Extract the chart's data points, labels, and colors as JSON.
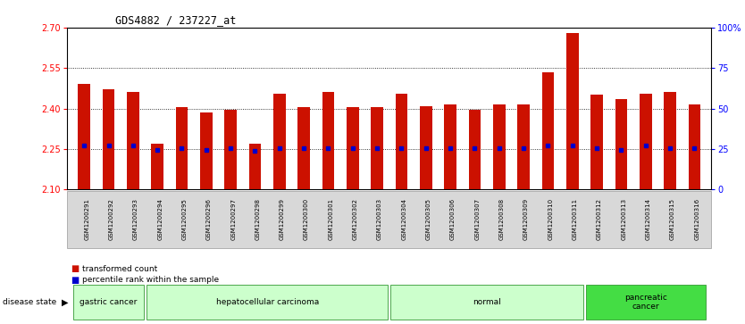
{
  "title": "GDS4882 / 237227_at",
  "samples": [
    "GSM1200291",
    "GSM1200292",
    "GSM1200293",
    "GSM1200294",
    "GSM1200295",
    "GSM1200296",
    "GSM1200297",
    "GSM1200298",
    "GSM1200299",
    "GSM1200300",
    "GSM1200301",
    "GSM1200302",
    "GSM1200303",
    "GSM1200304",
    "GSM1200305",
    "GSM1200306",
    "GSM1200307",
    "GSM1200308",
    "GSM1200309",
    "GSM1200310",
    "GSM1200311",
    "GSM1200312",
    "GSM1200313",
    "GSM1200314",
    "GSM1200315",
    "GSM1200316"
  ],
  "bar_heights": [
    2.49,
    2.47,
    2.46,
    2.27,
    2.405,
    2.385,
    2.395,
    2.27,
    2.455,
    2.405,
    2.46,
    2.405,
    2.405,
    2.455,
    2.41,
    2.415,
    2.395,
    2.415,
    2.415,
    2.535,
    2.68,
    2.45,
    2.435,
    2.455,
    2.46,
    2.415
  ],
  "blue_markers": [
    2.263,
    2.263,
    2.263,
    2.247,
    2.252,
    2.247,
    2.252,
    2.242,
    2.252,
    2.252,
    2.252,
    2.252,
    2.252,
    2.252,
    2.252,
    2.252,
    2.252,
    2.252,
    2.252,
    2.263,
    2.263,
    2.252,
    2.247,
    2.263,
    2.252,
    2.252
  ],
  "ymin": 2.1,
  "ymax": 2.7,
  "yticks_left": [
    2.1,
    2.25,
    2.4,
    2.55,
    2.7
  ],
  "yticks_right_vals": [
    0,
    25,
    50,
    75,
    100
  ],
  "bar_color": "#cc1100",
  "marker_color": "#0000cc",
  "bg_color": "#ffffff",
  "groups": [
    {
      "label": "gastric cancer",
      "start": 0,
      "end": 2,
      "color": "#ccffcc"
    },
    {
      "label": "hepatocellular carcinoma",
      "start": 3,
      "end": 12,
      "color": "#ccffcc"
    },
    {
      "label": "normal",
      "start": 13,
      "end": 20,
      "color": "#ccffcc"
    },
    {
      "label": "pancreatic\ncancer",
      "start": 21,
      "end": 25,
      "color": "#44dd44"
    }
  ],
  "legend_items": [
    {
      "color": "#cc1100",
      "label": "transformed count"
    },
    {
      "color": "#0000cc",
      "label": "percentile rank within the sample"
    }
  ],
  "xlim_min": -0.7,
  "xlim_max": 25.7
}
